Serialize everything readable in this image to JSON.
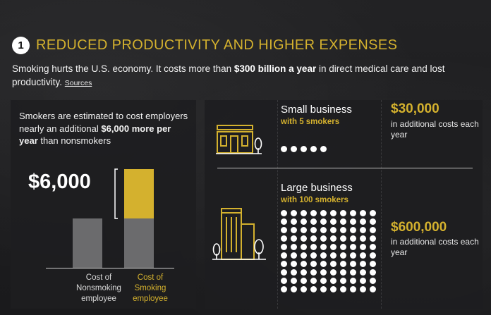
{
  "header": {
    "number": "1",
    "title": "REDUCED PRODUCTIVITY AND HIGHER EXPENSES"
  },
  "intro": {
    "text_before": "Smoking hurts the U.S. economy. It costs more than ",
    "text_bold": "$300 billion a year",
    "text_after": " in direct medical care and lost productivity.",
    "link": "Sources"
  },
  "left_panel": {
    "desc_before": "Smokers are estimated to cost employers nearly an additional ",
    "desc_bold": "$6,000 more per year",
    "desc_after": " than nonsmokers",
    "big_amount": "$6,000"
  },
  "chart_data": {
    "type": "bar",
    "categories": [
      "Cost of Nonsmoking employee",
      "Cost of Smoking employee"
    ],
    "series": [
      {
        "values": [
          1.0,
          1.0
        ],
        "color": "#6b6b6d"
      },
      {
        "values": [
          0,
          1.0
        ],
        "color": "#d4b12e"
      }
    ],
    "annotation": "$6,000",
    "labels": {
      "nonsmoking": [
        "Cost of",
        "Nonsmoking",
        "employee"
      ],
      "smoking": [
        "Cost of",
        "Smoking",
        "employee"
      ]
    }
  },
  "right_panel": {
    "small": {
      "title": "Small business",
      "sub": "with 5 smokers",
      "smokers": 5,
      "cost": "$30,000",
      "cost_desc": "in additional costs each year"
    },
    "large": {
      "title": "Large business",
      "sub": "with 100 smokers",
      "smokers": 100,
      "cost": "$600,000",
      "cost_desc": "in additional costs each year"
    },
    "icons": {
      "small": "storefront-icon",
      "large": "office-building-icon"
    }
  },
  "colors": {
    "accent": "#d4b12e",
    "bar_gray": "#6b6b6d",
    "background": "#1b1b1d"
  }
}
